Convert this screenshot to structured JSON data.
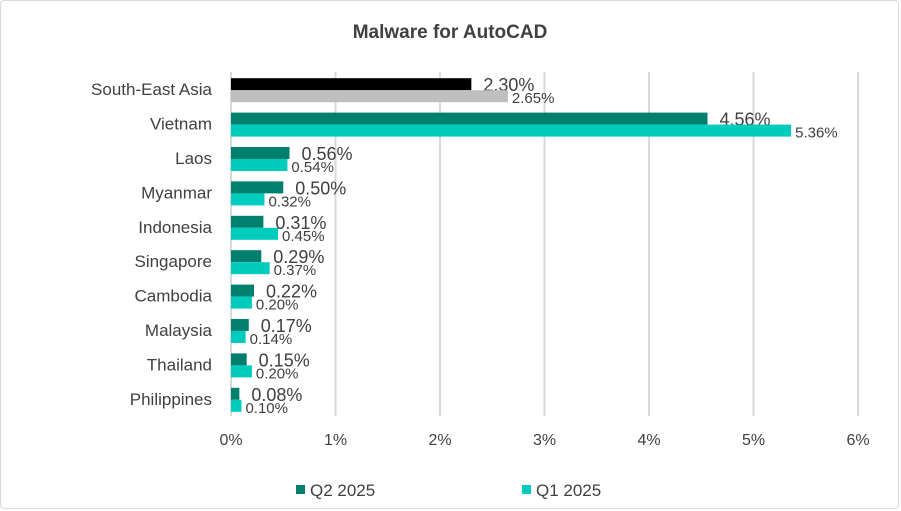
{
  "chart_data": {
    "type": "bar",
    "orientation": "horizontal",
    "title": "Malware for AutoCAD",
    "categories": [
      "South-East Asia",
      "Vietnam",
      "Laos",
      "Myanmar",
      "Indonesia",
      "Singapore",
      "Cambodia",
      "Malaysia",
      "Thailand",
      "Philippines"
    ],
    "series": [
      {
        "name": "Q2 2025",
        "color": "#007F6E",
        "values": [
          2.3,
          4.56,
          0.56,
          0.5,
          0.31,
          0.29,
          0.22,
          0.17,
          0.15,
          0.08
        ],
        "labels": [
          "2.30%",
          "4.56%",
          "0.56%",
          "0.50%",
          "0.31%",
          "0.29%",
          "0.22%",
          "0.17%",
          "0.15%",
          "0.08%"
        ]
      },
      {
        "name": "Q1 2025",
        "color": "#00CCBE",
        "values": [
          2.65,
          5.36,
          0.54,
          0.32,
          0.45,
          0.37,
          0.2,
          0.14,
          0.2,
          0.1
        ],
        "labels": [
          "2.65%",
          "5.36%",
          "0.54%",
          "0.32%",
          "0.45%",
          "0.37%",
          "0.20%",
          "0.14%",
          "0.20%",
          "0.10%"
        ]
      }
    ],
    "category_color_overrides": {
      "South-East Asia": [
        "#000000",
        "#BFBFBF"
      ]
    },
    "xlim": [
      0,
      6
    ],
    "xticks": [
      "0%",
      "1%",
      "2%",
      "3%",
      "4%",
      "5%",
      "6%"
    ],
    "xlabel": "",
    "ylabel": "",
    "grid": true,
    "legend": "bottom"
  }
}
